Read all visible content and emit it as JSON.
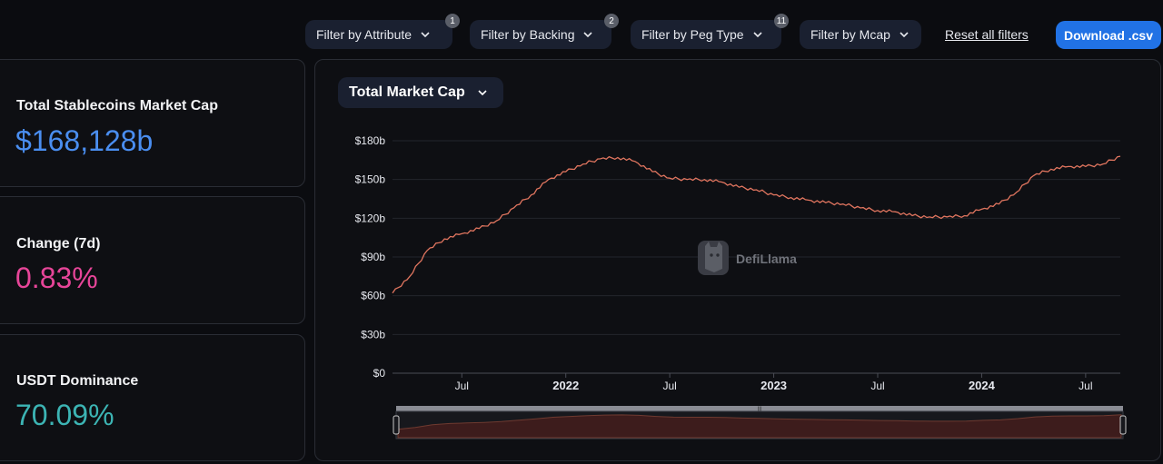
{
  "filters": [
    {
      "label": "Filter by Attribute",
      "badge": "1"
    },
    {
      "label": "Filter by Backing",
      "badge": "2"
    },
    {
      "label": "Filter by Peg Type",
      "badge": "11"
    },
    {
      "label": "Filter by Mcap",
      "badge": ""
    }
  ],
  "reset_label": "Reset all filters",
  "download_label": "Download .csv",
  "cards": [
    {
      "label": "Total Stablecoins Market Cap",
      "value": "$168,128b",
      "color": "#4a8ef0"
    },
    {
      "label": "Change (7d)",
      "value": "0.83%",
      "color": "#e64598"
    },
    {
      "label": "USDT Dominance",
      "value": "70.09%",
      "color": "#3cb4b4"
    }
  ],
  "chart_selector": {
    "label": "Total Market Cap"
  },
  "watermark": "DefiLlama",
  "chart_data": {
    "type": "line",
    "y_ticks": [
      "$0",
      "$30b",
      "$60b",
      "$90b",
      "$120b",
      "$150b",
      "$180b"
    ],
    "x_ticks": [
      "Jul",
      "2022",
      "Jul",
      "2023",
      "Jul",
      "2024",
      "Jul"
    ],
    "ylim": [
      0,
      180
    ],
    "line_color": "#e0755f",
    "x": [
      "2021-03",
      "2021-04",
      "2021-05",
      "2021-06",
      "2021-07",
      "2021-08",
      "2021-09",
      "2021-10",
      "2021-11",
      "2021-12",
      "2022-01",
      "2022-02",
      "2022-03",
      "2022-04",
      "2022-05",
      "2022-06",
      "2022-07",
      "2022-08",
      "2022-09",
      "2022-10",
      "2022-11",
      "2022-12",
      "2023-01",
      "2023-02",
      "2023-03",
      "2023-04",
      "2023-05",
      "2023-06",
      "2023-07",
      "2023-08",
      "2023-09",
      "2023-10",
      "2023-11",
      "2023-12",
      "2024-01",
      "2024-02",
      "2024-03",
      "2024-04",
      "2024-05",
      "2024-06",
      "2024-07",
      "2024-08",
      "2024-09"
    ],
    "values": [
      62,
      75,
      95,
      104,
      108,
      112,
      118,
      128,
      138,
      150,
      156,
      162,
      166,
      167,
      164,
      156,
      151,
      150,
      150,
      148,
      144,
      142,
      138,
      136,
      134,
      132,
      131,
      128,
      126,
      125,
      122,
      121,
      121,
      122,
      127,
      131,
      140,
      153,
      158,
      160,
      160,
      162,
      168
    ]
  }
}
